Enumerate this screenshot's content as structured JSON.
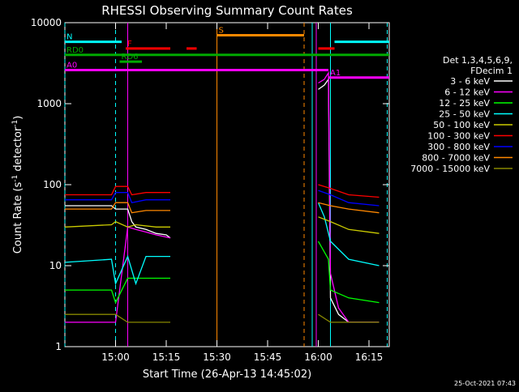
{
  "chart_data": {
    "type": "line",
    "title": "RHESSI Observing Summary Count Rates",
    "xlabel": "Start Time (26-Apr-13 14:45:02)",
    "ylabel_main": "Count Rate (s",
    "ylabel_sup": "-1",
    "ylabel_tail": " detector",
    "ylabel_end": ")",
    "yscale": "log",
    "ylim": [
      1,
      10000
    ],
    "xlim_minutes": [
      14.75,
      16.35
    ],
    "yticks": [
      {
        "label": "1",
        "value": 1
      },
      {
        "label": "10",
        "value": 10
      },
      {
        "label": "100",
        "value": 100
      },
      {
        "label": "1000",
        "value": 1000
      },
      {
        "label": "10000",
        "value": 10000
      }
    ],
    "xticks": [
      {
        "label": "15:00",
        "value": 15.0
      },
      {
        "label": "15:15",
        "value": 15.25
      },
      {
        "label": "15:30",
        "value": 15.5
      },
      {
        "label": "15:45",
        "value": 15.75
      },
      {
        "label": "16:00",
        "value": 16.0
      },
      {
        "label": "16:15",
        "value": 16.25
      }
    ],
    "legend_header": [
      "Det 1,3,4,5,6,9,",
      "FDecim 1"
    ],
    "series": [
      {
        "name": "3 - 6 keV",
        "color": "#ffffff",
        "points": [
          [
            14.75,
            55
          ],
          [
            14.98,
            55
          ],
          [
            15.0,
            50
          ],
          [
            15.06,
            50
          ],
          [
            15.08,
            35
          ],
          [
            15.1,
            30
          ],
          [
            15.15,
            28
          ],
          [
            15.2,
            25
          ],
          [
            15.25,
            24
          ],
          [
            15.27,
            22
          ],
          [
            15.33,
            null
          ],
          [
            15.95,
            null
          ],
          [
            16.0,
            1500
          ],
          [
            16.03,
            1700
          ],
          [
            16.05,
            2000
          ],
          [
            16.06,
            4
          ],
          [
            16.1,
            2.5
          ],
          [
            16.15,
            2
          ],
          [
            16.2,
            2
          ],
          [
            16.3,
            2
          ]
        ]
      },
      {
        "name": "6 - 12 keV",
        "color": "#ff00ff",
        "points": [
          [
            14.75,
            2
          ],
          [
            14.98,
            2
          ],
          [
            15.0,
            2
          ],
          [
            15.06,
            30
          ],
          [
            15.1,
            28
          ],
          [
            15.15,
            26
          ],
          [
            15.2,
            24
          ],
          [
            15.27,
            22
          ],
          [
            15.33,
            null
          ],
          [
            15.95,
            null
          ],
          [
            16.0,
            1800
          ],
          [
            16.03,
            2000
          ],
          [
            16.05,
            2400
          ],
          [
            16.06,
            8
          ],
          [
            16.1,
            3
          ],
          [
            16.15,
            2
          ],
          [
            16.3,
            2
          ]
        ]
      },
      {
        "name": "12 - 25 keV",
        "color": "#00ff00",
        "points": [
          [
            14.75,
            5
          ],
          [
            14.98,
            5
          ],
          [
            15.0,
            3.5
          ],
          [
            15.06,
            7
          ],
          [
            15.1,
            7
          ],
          [
            15.2,
            7
          ],
          [
            15.27,
            7
          ],
          [
            15.33,
            null
          ],
          [
            15.95,
            null
          ],
          [
            16.0,
            20
          ],
          [
            16.05,
            12
          ],
          [
            16.06,
            5
          ],
          [
            16.15,
            4
          ],
          [
            16.3,
            3.5
          ]
        ]
      },
      {
        "name": "25 - 50 keV",
        "color": "#00ffff",
        "points": [
          [
            14.75,
            11
          ],
          [
            14.98,
            12
          ],
          [
            15.0,
            6
          ],
          [
            15.06,
            13
          ],
          [
            15.1,
            6
          ],
          [
            15.15,
            13
          ],
          [
            15.2,
            13
          ],
          [
            15.27,
            13
          ],
          [
            15.33,
            null
          ],
          [
            15.95,
            null
          ],
          [
            16.0,
            60
          ],
          [
            16.03,
            40
          ],
          [
            16.06,
            20
          ],
          [
            16.15,
            12
          ],
          [
            16.3,
            10
          ]
        ]
      },
      {
        "name": "50 - 100 keV",
        "color": "#cccc00",
        "points": [
          [
            14.75,
            30
          ],
          [
            14.98,
            32
          ],
          [
            15.0,
            35
          ],
          [
            15.06,
            30
          ],
          [
            15.1,
            32
          ],
          [
            15.2,
            30
          ],
          [
            15.27,
            30
          ],
          [
            15.33,
            null
          ],
          [
            15.95,
            null
          ],
          [
            16.0,
            40
          ],
          [
            16.06,
            35
          ],
          [
            16.15,
            28
          ],
          [
            16.3,
            25
          ]
        ]
      },
      {
        "name": "100 - 300 keV",
        "color": "#ff0000",
        "points": [
          [
            14.75,
            75
          ],
          [
            14.98,
            75
          ],
          [
            15.0,
            95
          ],
          [
            15.06,
            95
          ],
          [
            15.08,
            75
          ],
          [
            15.15,
            80
          ],
          [
            15.2,
            80
          ],
          [
            15.27,
            80
          ],
          [
            15.33,
            null
          ],
          [
            15.95,
            null
          ],
          [
            16.0,
            100
          ],
          [
            16.06,
            90
          ],
          [
            16.15,
            75
          ],
          [
            16.3,
            70
          ]
        ]
      },
      {
        "name": "300 - 800 keV",
        "color": "#0000ff",
        "points": [
          [
            14.75,
            65
          ],
          [
            14.98,
            65
          ],
          [
            15.0,
            80
          ],
          [
            15.06,
            80
          ],
          [
            15.08,
            60
          ],
          [
            15.15,
            65
          ],
          [
            15.2,
            65
          ],
          [
            15.27,
            65
          ],
          [
            15.33,
            null
          ],
          [
            15.95,
            null
          ],
          [
            16.0,
            85
          ],
          [
            16.06,
            75
          ],
          [
            16.15,
            60
          ],
          [
            16.3,
            55
          ]
        ]
      },
      {
        "name": "800 - 7000 keV",
        "color": "#ff8800",
        "points": [
          [
            14.75,
            50
          ],
          [
            14.98,
            50
          ],
          [
            15.0,
            60
          ],
          [
            15.06,
            60
          ],
          [
            15.08,
            45
          ],
          [
            15.15,
            48
          ],
          [
            15.2,
            48
          ],
          [
            15.27,
            48
          ],
          [
            15.33,
            null
          ],
          [
            15.95,
            null
          ],
          [
            16.0,
            60
          ],
          [
            16.06,
            55
          ],
          [
            16.15,
            50
          ],
          [
            16.3,
            45
          ]
        ]
      },
      {
        "name": "7000 - 15000 keV",
        "color": "#888800",
        "points": [
          [
            14.75,
            2.5
          ],
          [
            14.98,
            2.5
          ],
          [
            15.0,
            2.5
          ],
          [
            15.06,
            2
          ],
          [
            15.1,
            2
          ],
          [
            15.2,
            2
          ],
          [
            15.27,
            2
          ],
          [
            15.33,
            null
          ],
          [
            15.95,
            null
          ],
          [
            16.0,
            2.5
          ],
          [
            16.06,
            2
          ],
          [
            16.15,
            2
          ],
          [
            16.3,
            2
          ]
        ]
      }
    ],
    "flag_bars": [
      {
        "label": "N",
        "color": "#00ffff",
        "y": 5800,
        "segments": [
          [
            14.75,
            15.03
          ],
          [
            16.08,
            16.35
          ]
        ]
      },
      {
        "label": "S",
        "color": "#ff8800",
        "y": 7000,
        "segments": [
          [
            15.5,
            15.93
          ]
        ]
      },
      {
        "label": "F",
        "color": "#ff0000",
        "y": 4800,
        "segments": [
          [
            15.05,
            15.27
          ],
          [
            15.35,
            15.4
          ],
          [
            16.0,
            16.08
          ]
        ]
      },
      {
        "label": "RD0",
        "color": "#00aa00",
        "y": 4000,
        "segments": [
          [
            14.75,
            16.35
          ]
        ]
      },
      {
        "label": "RD6",
        "color": "#00aa00",
        "y": 3300,
        "segments": [
          [
            15.02,
            15.13
          ]
        ]
      },
      {
        "label": "A0",
        "color": "#ff00ff",
        "y": 2600,
        "segments": [
          [
            14.75,
            16.05
          ]
        ]
      },
      {
        "label": "A1",
        "color": "#ff00ff",
        "y": 2100,
        "segments": [
          [
            16.05,
            16.35
          ]
        ]
      }
    ],
    "vlines": [
      {
        "color": "#00ffff",
        "x": 14.75,
        "dashed": true
      },
      {
        "color": "#00ffff",
        "x": 15.0,
        "dashed": true
      },
      {
        "color": "#ff00ff",
        "x": 15.06,
        "dashed": false
      },
      {
        "color": "#ff8800",
        "x": 15.5,
        "dashed": false
      },
      {
        "color": "#ff8800",
        "x": 15.93,
        "dashed": true
      },
      {
        "color": "#00ffff",
        "x": 15.97,
        "dashed": false
      },
      {
        "color": "#ff00ff",
        "x": 15.99,
        "dashed": false
      },
      {
        "color": "#00ffff",
        "x": 16.06,
        "dashed": false
      },
      {
        "color": "#00ffff",
        "x": 16.34,
        "dashed": true
      }
    ],
    "grid": false,
    "legend_position": "right"
  },
  "footer_timestamp": "25-Oct-2021 07:43"
}
